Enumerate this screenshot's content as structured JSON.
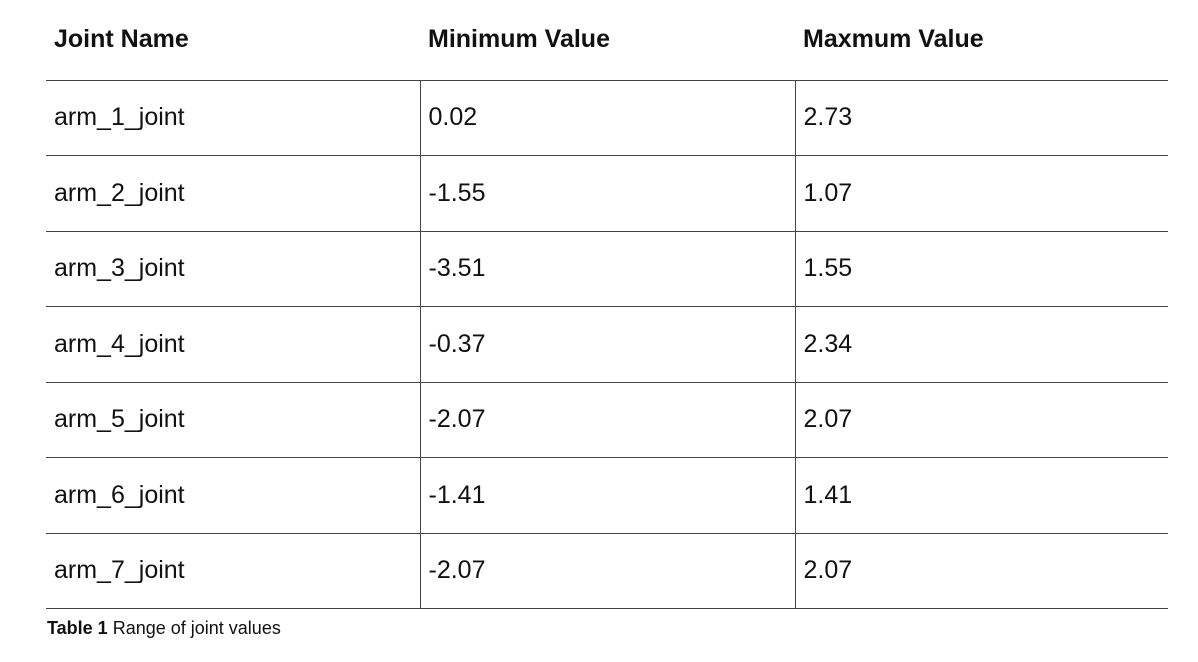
{
  "table": {
    "headers": [
      "Joint Name",
      "Minimum Value",
      "Maxmum Value"
    ],
    "rows": [
      [
        "arm_1_joint",
        "0.02",
        "2.73"
      ],
      [
        "arm_2_joint",
        "-1.55",
        "1.07"
      ],
      [
        "arm_3_joint",
        "-3.51",
        "1.55"
      ],
      [
        "arm_4_joint",
        "-0.37",
        "2.34"
      ],
      [
        "arm_5_joint",
        "-2.07",
        "2.07"
      ],
      [
        "arm_6_joint",
        "-1.41",
        "1.41"
      ],
      [
        "arm_7_joint",
        "-2.07",
        "2.07"
      ]
    ]
  },
  "caption": {
    "label": "Table 1",
    "text": "Range of joint values"
  }
}
